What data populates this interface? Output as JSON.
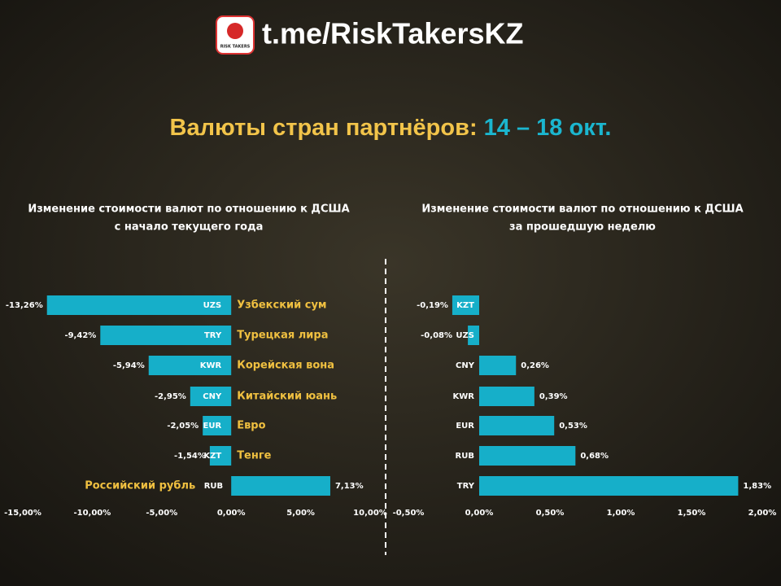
{
  "header": {
    "logo_text": "RISK TAKERS",
    "link": "t.me/RiskTakersKZ",
    "title": "Валюты стран партнёров:",
    "date": "14 – 18 окт."
  },
  "chart_data": [
    {
      "type": "hbar",
      "title": "Изменение стоимости валют по отношению к ДСША",
      "subtitle": "с начало текущего года",
      "categories": [
        "UZS",
        "TRY",
        "KWR",
        "CNY",
        "EUR",
        "KZT",
        "RUB"
      ],
      "labels": [
        "Узбекский сум",
        "Турецкая лира",
        "Корейская вона",
        "Китайский юань",
        "Евро",
        "Тенге",
        "Российский рубль"
      ],
      "values": [
        -13.26,
        -9.42,
        -5.94,
        -2.95,
        -2.05,
        -1.54,
        7.13
      ],
      "value_labels": [
        "-13,26%",
        "-9,42%",
        "-5,94%",
        "-2,95%",
        "-2,05%",
        "-1,54%",
        "7,13%"
      ],
      "color": "#16afc9",
      "xlim": [
        -15,
        10
      ],
      "xticks": [
        {
          "value": -15,
          "label": "-15,00%"
        },
        {
          "value": -10,
          "label": "-10,00%"
        },
        {
          "value": -5,
          "label": "-5,00%"
        },
        {
          "value": 0,
          "label": "0,00%"
        },
        {
          "value": 5,
          "label": "5,00%"
        },
        {
          "value": 10,
          "label": "10,00%"
        }
      ]
    },
    {
      "type": "hbar",
      "title": "Изменение стоимости валют по отношению к ДСША",
      "subtitle": "за прошедшую неделю",
      "categories": [
        "KZT",
        "UZS",
        "CNY",
        "KWR",
        "EUR",
        "RUB",
        "TRY"
      ],
      "values": [
        -0.19,
        -0.08,
        0.26,
        0.39,
        0.53,
        0.68,
        1.83
      ],
      "value_labels": [
        "-0,19%",
        "-0,08%",
        "0,26%",
        "0,39%",
        "0,53%",
        "0,68%",
        "1,83%"
      ],
      "color": "#16afc9",
      "xlim": [
        -0.5,
        2
      ],
      "xticks": [
        {
          "value": -0.5,
          "label": "-0,50%"
        },
        {
          "value": 0,
          "label": "0,00%"
        },
        {
          "value": 0.5,
          "label": "0,50%"
        },
        {
          "value": 1,
          "label": "1,00%"
        },
        {
          "value": 1.5,
          "label": "1,50%"
        },
        {
          "value": 2,
          "label": "2,00%"
        }
      ]
    }
  ]
}
